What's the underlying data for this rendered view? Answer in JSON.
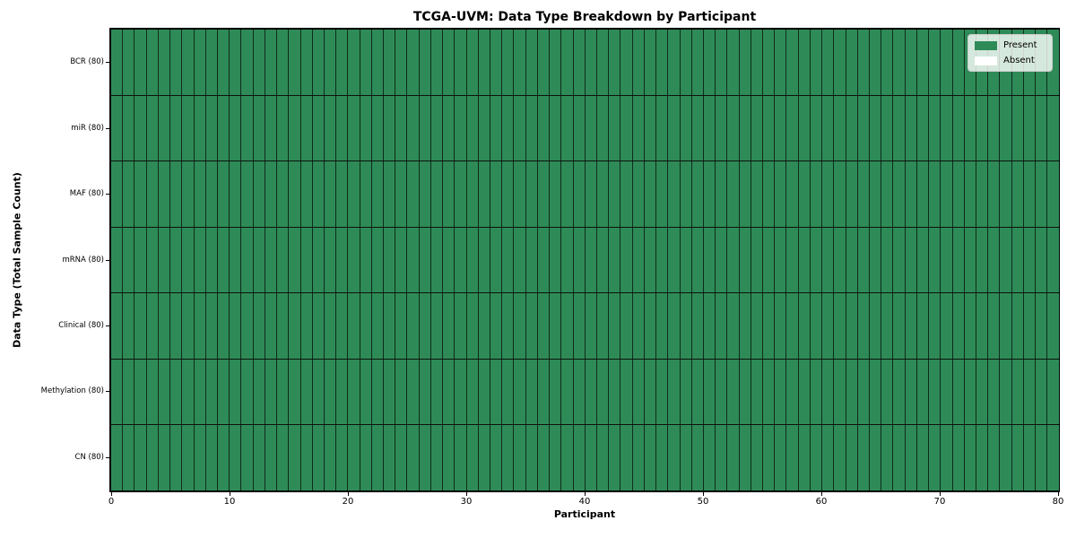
{
  "chart_data": {
    "type": "heatmap",
    "title": "TCGA-UVM: Data Type Breakdown by Participant",
    "xlabel": "Participant",
    "ylabel": "Data Type (Total Sample Count)",
    "x_range": [
      0,
      80
    ],
    "x_ticks": [
      0,
      10,
      20,
      30,
      40,
      50,
      60,
      70,
      80
    ],
    "n_participants": 80,
    "rows": [
      {
        "label": "BCR (80)",
        "data_type": "BCR",
        "total_samples": 80,
        "present_count": 80
      },
      {
        "label": "miR (80)",
        "data_type": "miR",
        "total_samples": 80,
        "present_count": 80
      },
      {
        "label": "MAF (80)",
        "data_type": "MAF",
        "total_samples": 80,
        "present_count": 80
      },
      {
        "label": "mRNA (80)",
        "data_type": "mRNA",
        "total_samples": 80,
        "present_count": 80
      },
      {
        "label": "Clinical (80)",
        "data_type": "Clinical",
        "total_samples": 80,
        "present_count": 80
      },
      {
        "label": "Methylation (80)",
        "data_type": "Methylation",
        "total_samples": 80,
        "present_count": 80
      },
      {
        "label": "CN (80)",
        "data_type": "CN",
        "total_samples": 80,
        "present_count": 80
      }
    ],
    "legend": {
      "position": "upper right",
      "entries": [
        {
          "label": "Present",
          "color": "#2e8b57"
        },
        {
          "label": "Absent",
          "color": "#ffffff"
        }
      ]
    },
    "colors": {
      "present": "#2e8b57",
      "absent": "#ffffff",
      "cell_edge": "#0d120e",
      "plot_border": "#000000"
    },
    "grid": false
  }
}
